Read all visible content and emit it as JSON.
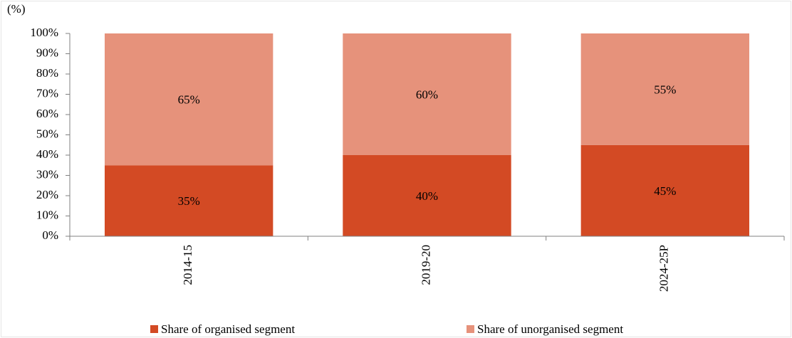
{
  "chart_data": {
    "type": "stacked_bar",
    "ylabel": "(%)",
    "categories": [
      "2014-15",
      "2019-20",
      "2024-25P"
    ],
    "series": [
      {
        "name": "Share of organised segment",
        "color": "#d34a24",
        "values": [
          35,
          40,
          45
        ],
        "value_labels": [
          "35%",
          "40%",
          "45%"
        ]
      },
      {
        "name": "Share of unorganised segment",
        "color": "#e6927b",
        "values": [
          65,
          60,
          55
        ],
        "value_labels": [
          "65%",
          "60%",
          "55%"
        ]
      }
    ],
    "ylim": [
      0,
      100
    ],
    "yticks": [
      {
        "value": 0,
        "label": "0%"
      },
      {
        "value": 10,
        "label": "10%"
      },
      {
        "value": 20,
        "label": "20%"
      },
      {
        "value": 30,
        "label": "30%"
      },
      {
        "value": 40,
        "label": "40%"
      },
      {
        "value": 50,
        "label": "50%"
      },
      {
        "value": 60,
        "label": "60%"
      },
      {
        "value": 70,
        "label": "70%"
      },
      {
        "value": 80,
        "label": "80%"
      },
      {
        "value": 90,
        "label": "90%"
      },
      {
        "value": 100,
        "label": "100%"
      }
    ],
    "legend": "bottom"
  }
}
